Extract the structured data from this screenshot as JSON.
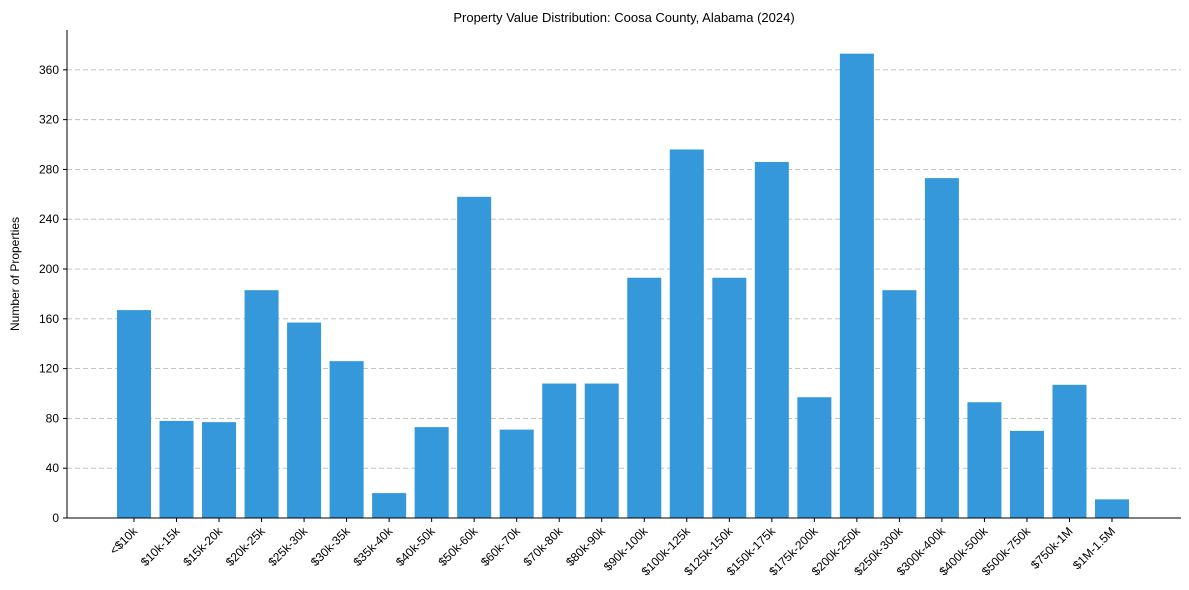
{
  "chart_data": {
    "type": "bar",
    "title": "Property Value Distribution: Coosa County, Alabama (2024)",
    "xlabel": "",
    "ylabel": "Number of Properties",
    "ylim": [
      0,
      392
    ],
    "yticks": [
      0,
      40,
      80,
      120,
      160,
      200,
      240,
      280,
      320,
      360
    ],
    "grid": "y-dashed",
    "bar_color": "#3498db",
    "categories": [
      "<$10k",
      "$10k-15k",
      "$15k-20k",
      "$20k-25k",
      "$25k-30k",
      "$30k-35k",
      "$35k-40k",
      "$40k-50k",
      "$50k-60k",
      "$60k-70k",
      "$70k-80k",
      "$80k-90k",
      "$90k-100k",
      "$100k-125k",
      "$125k-150k",
      "$150k-175k",
      "$175k-200k",
      "$200k-250k",
      "$250k-300k",
      "$300k-400k",
      "$400k-500k",
      "$500k-750k",
      "$750k-1M",
      "$1M-1.5M"
    ],
    "values": [
      167,
      78,
      77,
      183,
      157,
      126,
      20,
      73,
      258,
      71,
      108,
      108,
      193,
      296,
      193,
      286,
      97,
      373,
      183,
      273,
      93,
      70,
      107,
      15
    ]
  }
}
